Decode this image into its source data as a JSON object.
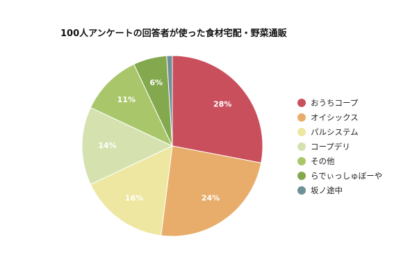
{
  "chart_data": {
    "type": "pie",
    "title": "100人アンケートの回答者が使った食材宅配・野菜通販",
    "slices": [
      {
        "label": "おうちコープ",
        "value": 28,
        "display": "28%",
        "color": "#c94f5c"
      },
      {
        "label": "オイシックス",
        "value": 24,
        "display": "24%",
        "color": "#e8ad6b"
      },
      {
        "label": "パルシステム",
        "value": 16,
        "display": "16%",
        "color": "#ede7a1"
      },
      {
        "label": "コープデリ",
        "value": 14,
        "display": "14%",
        "color": "#d5e2b0"
      },
      {
        "label": "その他",
        "value": 11,
        "display": "11%",
        "color": "#a9c76a"
      },
      {
        "label": "らでぃっしゅぼーや",
        "value": 6,
        "display": "6%",
        "color": "#84a84e"
      },
      {
        "label": "坂ノ途中",
        "value": 1,
        "display": "",
        "color": "#6e9097"
      }
    ],
    "legend_position": "right"
  }
}
